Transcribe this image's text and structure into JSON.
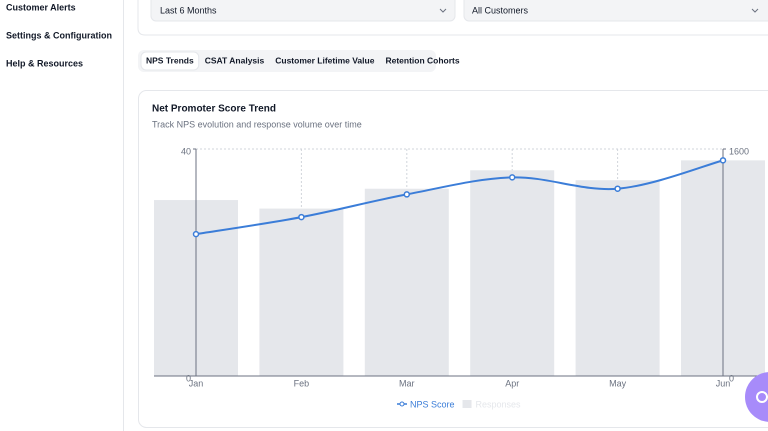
{
  "sidebar": {
    "items": [
      "Customer Alerts",
      "Settings & Configuration",
      "Help & Resources"
    ]
  },
  "filters": [
    "Last 6 Months",
    "All Customers"
  ],
  "tabs": {
    "items": [
      "NPS Trends",
      "CSAT Analysis",
      "Customer Lifetime Value",
      "Retention Cohorts"
    ],
    "active": 0
  },
  "chart_data": {
    "type": "bar_line",
    "title": "Net Promoter Score Trend",
    "subtitle": "Track NPS evolution and response volume over time",
    "categories": [
      "Jan",
      "Feb",
      "Mar",
      "Apr",
      "May",
      "Jun"
    ],
    "series": [
      {
        "name": "NPS Score",
        "type": "line",
        "color": "#3b7dd8",
        "values": [
          25,
          28,
          32,
          35,
          33,
          38
        ]
      },
      {
        "name": "Responses",
        "type": "bar",
        "axis": "y2",
        "color": "#e5e7eb",
        "values": [
          1240,
          1180,
          1320,
          1450,
          1380,
          1520
        ]
      }
    ],
    "ylim": [
      0,
      40
    ],
    "yticks": [
      0,
      40
    ],
    "y2lim": [
      0,
      1600
    ],
    "y2ticks": [
      0,
      1600
    ],
    "grid": true
  }
}
